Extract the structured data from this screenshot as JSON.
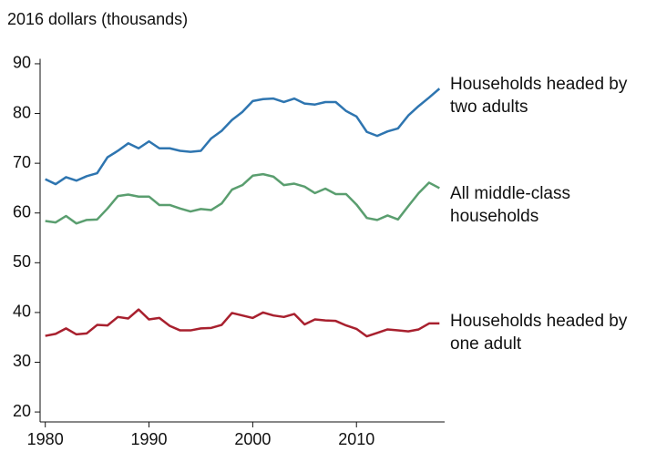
{
  "chart_data": {
    "type": "line",
    "y_axis_label": "2016 dollars (thousands)",
    "x": [
      1980,
      1981,
      1982,
      1983,
      1984,
      1985,
      1986,
      1987,
      1988,
      1989,
      1990,
      1991,
      1992,
      1993,
      1994,
      1995,
      1996,
      1997,
      1998,
      1999,
      2000,
      2001,
      2002,
      2003,
      2004,
      2005,
      2006,
      2007,
      2008,
      2009,
      2010,
      2011,
      2012,
      2013,
      2014,
      2015,
      2016,
      2017,
      2018
    ],
    "series": [
      {
        "name": "Households headed by two adults",
        "color": "#2e75b0",
        "values": [
          66.8,
          65.8,
          67.2,
          66.5,
          67.4,
          68,
          71.2,
          72.5,
          74,
          73,
          74.4,
          73,
          73,
          72.5,
          72.3,
          72.5,
          75,
          76.5,
          78.7,
          80.3,
          82.5,
          82.9,
          83,
          82.3,
          83,
          82,
          81.8,
          82.3,
          82.3,
          80.5,
          79.4,
          76.3,
          75.5,
          76.4,
          77,
          79.6,
          81.5,
          83.2,
          85
        ]
      },
      {
        "name": "All middle-class households",
        "color": "#5a9e6f",
        "values": [
          58.4,
          58.1,
          59.4,
          57.9,
          58.6,
          58.7,
          60.9,
          63.4,
          63.7,
          63.3,
          63.3,
          61.6,
          61.6,
          60.9,
          60.3,
          60.8,
          60.6,
          61.9,
          64.7,
          65.6,
          67.5,
          67.8,
          67.3,
          65.6,
          65.9,
          65.3,
          64,
          64.9,
          63.8,
          63.8,
          61.7,
          59,
          58.6,
          59.5,
          58.7,
          61.4,
          64,
          66.1,
          65
        ]
      },
      {
        "name": "Households headed by one adult",
        "color": "#a8202e",
        "values": [
          35.3,
          35.7,
          36.8,
          35.6,
          35.8,
          37.5,
          37.4,
          39.1,
          38.8,
          40.6,
          38.6,
          38.9,
          37.3,
          36.4,
          36.4,
          36.8,
          36.9,
          37.5,
          39.9,
          39.4,
          38.9,
          40,
          39.4,
          39.1,
          39.7,
          37.6,
          38.6,
          38.4,
          38.3,
          37.4,
          36.7,
          35.2,
          35.9,
          36.6,
          36.4,
          36.2,
          36.6,
          37.8,
          37.8
        ]
      }
    ],
    "xlim": [
      1979.5,
      2018.5
    ],
    "xticks": [
      1980,
      1990,
      2000,
      2010
    ],
    "ylim": [
      18,
      91
    ],
    "yticks": [
      20,
      30,
      40,
      50,
      60,
      70,
      80,
      90
    ]
  }
}
